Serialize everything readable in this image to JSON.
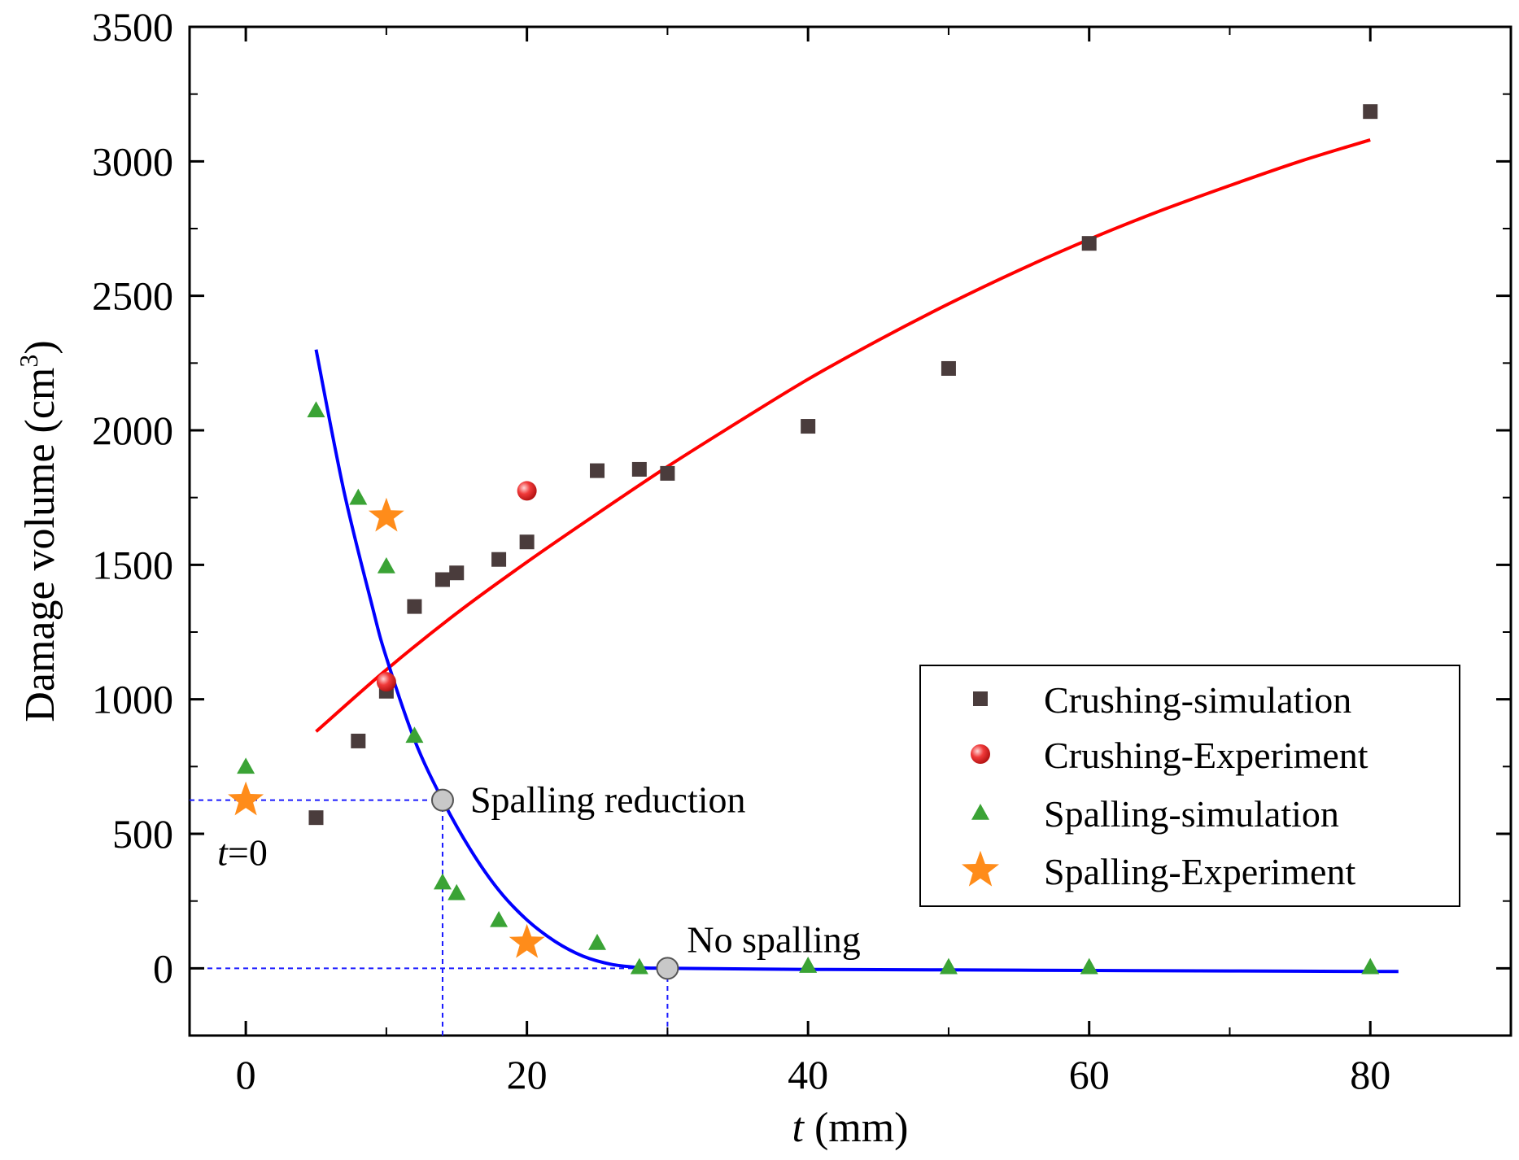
{
  "chart_data": {
    "type": "scatter",
    "xlabel": {
      "italic": "t",
      "rest": " (mm)"
    },
    "ylabel": {
      "main": "Damage volume (cm",
      "sup": "3",
      "close": ")"
    },
    "xlim": [
      -4,
      90
    ],
    "ylim": [
      -250,
      3500
    ],
    "x_ticks": [
      0,
      20,
      40,
      60,
      80
    ],
    "y_ticks": [
      0,
      500,
      1000,
      1500,
      2000,
      2500,
      3000,
      3500
    ],
    "x_tick_labels": [
      "0",
      "20",
      "40",
      "60",
      "80"
    ],
    "y_tick_labels": [
      "0",
      "500",
      "1000",
      "1500",
      "2000",
      "2500",
      "3000",
      "3500"
    ],
    "grid": false,
    "legend_position": "right",
    "series": [
      {
        "name": "Crushing-simulation",
        "marker": "square",
        "color": "#4a3c3c",
        "points": [
          [
            5,
            560
          ],
          [
            8,
            845
          ],
          [
            10,
            1030
          ],
          [
            12,
            1345
          ],
          [
            14,
            1445
          ],
          [
            15,
            1470
          ],
          [
            18,
            1520
          ],
          [
            20,
            1585
          ],
          [
            25,
            1850
          ],
          [
            28,
            1855
          ],
          [
            30,
            1840
          ],
          [
            40,
            2015
          ],
          [
            50,
            2230
          ],
          [
            60,
            2695
          ],
          [
            80,
            3185
          ]
        ]
      },
      {
        "name": "Crushing-Experiment",
        "marker": "sphere",
        "color": "#e8262b",
        "points": [
          [
            10,
            1065
          ],
          [
            20,
            1775
          ]
        ]
      },
      {
        "name": "Spalling-simulation",
        "marker": "triangle",
        "color": "#3aa335",
        "points": [
          [
            0,
            750
          ],
          [
            5,
            2075
          ],
          [
            8,
            1750
          ],
          [
            10,
            1495
          ],
          [
            12,
            865
          ],
          [
            14,
            320
          ],
          [
            15,
            280
          ],
          [
            18,
            180
          ],
          [
            25,
            95
          ],
          [
            28,
            5
          ],
          [
            40,
            10
          ],
          [
            50,
            5
          ],
          [
            60,
            5
          ],
          [
            80,
            5
          ]
        ]
      },
      {
        "name": "Spalling-Experiment",
        "marker": "star",
        "color": "#ff8c1a",
        "points": [
          [
            0,
            625
          ],
          [
            10,
            1680
          ],
          [
            20,
            95
          ]
        ]
      }
    ],
    "fit_curves": [
      {
        "color": "#ff0000",
        "points": [
          [
            5,
            880
          ],
          [
            10,
            1110
          ],
          [
            15,
            1320
          ],
          [
            20,
            1510
          ],
          [
            25,
            1690
          ],
          [
            30,
            1865
          ],
          [
            35,
            2030
          ],
          [
            40,
            2190
          ],
          [
            45,
            2335
          ],
          [
            50,
            2470
          ],
          [
            55,
            2595
          ],
          [
            60,
            2710
          ],
          [
            65,
            2815
          ],
          [
            70,
            2910
          ],
          [
            75,
            3000
          ],
          [
            80,
            3080
          ]
        ]
      },
      {
        "color": "#0000ff",
        "points": [
          [
            5,
            2300
          ],
          [
            7,
            1770
          ],
          [
            9,
            1345
          ],
          [
            10,
            1155
          ],
          [
            12,
            850
          ],
          [
            14,
            625
          ],
          [
            16,
            440
          ],
          [
            18,
            290
          ],
          [
            20,
            180
          ],
          [
            22,
            100
          ],
          [
            24,
            45
          ],
          [
            26,
            15
          ],
          [
            28,
            3
          ],
          [
            30,
            0
          ],
          [
            40,
            -4
          ],
          [
            50,
            -6
          ],
          [
            60,
            -8
          ],
          [
            70,
            -10
          ],
          [
            82,
            -12
          ]
        ]
      }
    ],
    "reference_lines": [
      {
        "from": [
          -4,
          625
        ],
        "to": [
          14,
          625
        ]
      },
      {
        "from": [
          14,
          -250
        ],
        "to": [
          14,
          625
        ]
      },
      {
        "from": [
          -4,
          0
        ],
        "to": [
          30,
          0
        ]
      },
      {
        "from": [
          30,
          -250
        ],
        "to": [
          30,
          0
        ]
      }
    ],
    "annotations": [
      {
        "label": "Spalling reduction",
        "x": 14,
        "y": 625
      },
      {
        "label": "No spalling",
        "x": 30,
        "y": 0
      },
      {
        "italic": "t",
        "label": "=0",
        "x": 0,
        "y": 625
      }
    ]
  }
}
